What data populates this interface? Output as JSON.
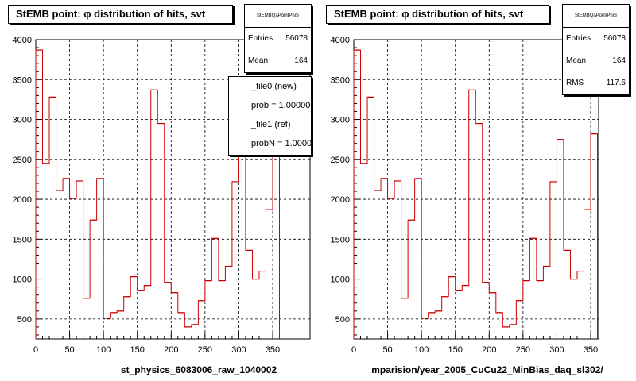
{
  "colors": {
    "ref": "#cc0000",
    "new": "#000000",
    "grid": "#000000"
  },
  "footnote": "",
  "chart_data": [
    {
      "type": "histogram",
      "title": "StEMB point:  φ distribution of hits, svt",
      "xlabel": "st_physics_6083006_raw_1040002",
      "ylabel": "",
      "xlim": [
        0,
        360
      ],
      "ylim": [
        250,
        4000
      ],
      "bin_width": 10,
      "xticks": [
        0,
        50,
        100,
        150,
        200,
        250,
        300,
        350
      ],
      "yticks": [
        500,
        1000,
        1500,
        2000,
        2500,
        3000,
        3500,
        4000
      ],
      "grid": true,
      "legend_position": "top-right",
      "series": [
        {
          "name": "_file1 (ref)",
          "values": [
            3870,
            2450,
            3280,
            2110,
            2260,
            2010,
            2230,
            760,
            1740,
            2260,
            510,
            580,
            600,
            780,
            1030,
            860,
            920,
            3370,
            2950,
            960,
            830,
            580,
            400,
            430,
            730,
            980,
            1510,
            980,
            1160,
            2220,
            2750,
            1360,
            1000,
            1100,
            1870,
            2820
          ]
        }
      ],
      "stats": {
        "name": "StEMBQaPointPhiS",
        "entries": "56078",
        "mean": "164"
      },
      "legend": [
        {
          "label": "_file0 (new)",
          "color": "#000000"
        },
        {
          "label": "prob = 1.000000",
          "color": "#000000"
        },
        {
          "label": "_file1 (ref)",
          "color": "#cc0000"
        },
        {
          "label": "probN = 1.000000",
          "color": "#cc0000"
        }
      ]
    },
    {
      "type": "histogram",
      "title": "StEMB point:  φ distribution of hits, svt",
      "xlabel": "mparision/year_2005_CuCu22_MinBias_daq_sl302/",
      "ylabel": "",
      "xlim": [
        0,
        360
      ],
      "ylim": [
        250,
        4000
      ],
      "bin_width": 10,
      "xticks": [
        0,
        50,
        100,
        150,
        200,
        250,
        300,
        350
      ],
      "yticks": [
        500,
        1000,
        1500,
        2000,
        2500,
        3000,
        3500,
        4000
      ],
      "grid": true,
      "series": [
        {
          "name": "",
          "values": [
            3870,
            2450,
            3280,
            2110,
            2260,
            2010,
            2230,
            760,
            1740,
            2260,
            510,
            580,
            600,
            780,
            1030,
            860,
            920,
            3370,
            2950,
            960,
            830,
            580,
            400,
            430,
            730,
            980,
            1510,
            980,
            1160,
            2220,
            2750,
            1360,
            1000,
            1100,
            1870,
            2820
          ]
        }
      ],
      "stats": {
        "name": "StEMBQaPointPhiS",
        "entries": "56078",
        "mean": "164",
        "rms": "117.6"
      }
    }
  ]
}
